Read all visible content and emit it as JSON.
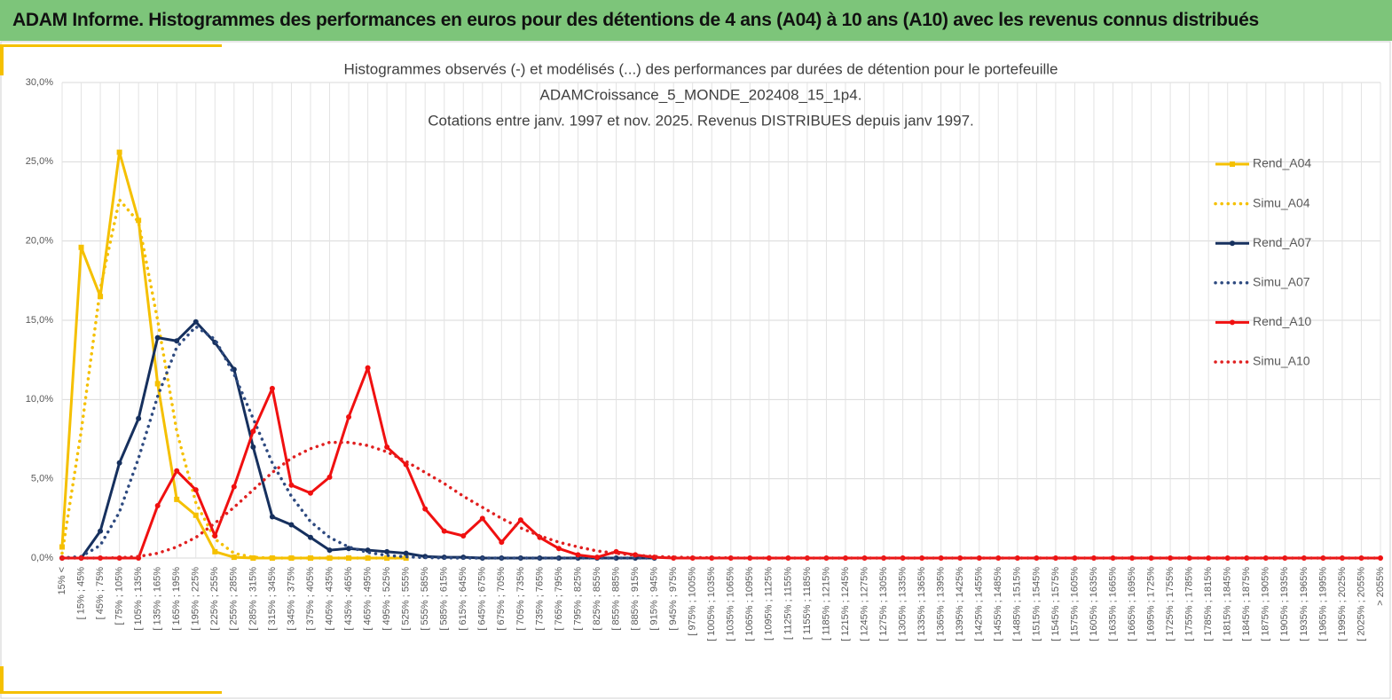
{
  "header": {
    "title": "ADAM Informe. Histogrammes des performances en euros pour des détentions de 4 ans (A04) à 10 ans (A10) avec les revenus connus distribués"
  },
  "chart_data": {
    "type": "line",
    "title": [
      "Histogrammes observés (-) et modélisés (...) des performances  par durées de détention pour le portefeuille",
      "ADAMCroissance_5_MONDE_202408_15_1p4.",
      "Cotations entre janv. 1997 et nov. 2025. Revenus DISTRIBUES depuis janv 1997."
    ],
    "categories": [
      "15% <",
      "[ 15% ; 45%",
      "[ 45% ; 75%",
      "[ 75% ; 105%",
      "[ 105% ; 135%",
      "[ 135% ; 165%",
      "[ 165% ; 195%",
      "[ 195% ; 225%",
      "[ 225% ; 255%",
      "[ 255% ; 285%",
      "[ 285% ; 315%",
      "[ 315% ; 345%",
      "[ 345% ; 375%",
      "[ 375% ; 405%",
      "[ 405% ; 435%",
      "[ 435% ; 465%",
      "[ 465% ; 495%",
      "[ 495% ; 525%",
      "[ 525% ; 555%",
      "[ 555% ; 585%",
      "[ 585% ; 615%",
      "[ 615% ; 645%",
      "[ 645% ; 675%",
      "[ 675% ; 705%",
      "[ 705% ; 735%",
      "[ 735% ; 765%",
      "[ 765% ; 795%",
      "[ 795% ; 825%",
      "[ 825% ; 855%",
      "[ 855% ; 885%",
      "[ 885% ; 915%",
      "[ 915% ; 945%",
      "[ 945% ; 975%",
      "[ 975% ; 1005%",
      "[ 1005% ; 1035%",
      "[ 1035% ; 1065%",
      "[ 1065% ; 1095%",
      "[ 1095% ; 1125%",
      "[ 1125% ; 1155%",
      "[ 1155% ; 1185%",
      "[ 1185% ; 1215%",
      "[ 1215% ; 1245%",
      "[ 1245% ; 1275%",
      "[ 1275% ; 1305%",
      "[ 1305% ; 1335%",
      "[ 1335% ; 1365%",
      "[ 1365% ; 1395%",
      "[ 1395% ; 1425%",
      "[ 1425% ; 1455%",
      "[ 1455% ; 1485%",
      "[ 1485% ; 1515%",
      "[ 1515% ; 1545%",
      "[ 1545% ; 1575%",
      "[ 1575% ; 1605%",
      "[ 1605% ; 1635%",
      "[ 1635% ; 1665%",
      "[ 1665% ; 1695%",
      "[ 1695% ; 1725%",
      "[ 1725% ; 1755%",
      "[ 1755% ; 1785%",
      "[ 1785% ; 1815%",
      "[ 1815% ; 1845%",
      "[ 1845% ; 1875%",
      "[ 1875% ; 1905%",
      "[ 1905% ; 1935%",
      "[ 1935% ; 1965%",
      "[ 1965% ; 1995%",
      "[ 1995% ; 2025%",
      "[ 2025% ; 2055%",
      "> 2055%"
    ],
    "series": [
      {
        "name": "Rend_A04",
        "color": "#f5c000",
        "style": "solid",
        "marker": "square",
        "values": [
          0.7,
          19.6,
          16.5,
          25.6,
          21.3,
          11,
          3.7,
          2.7,
          0.4,
          0.05,
          0,
          0,
          0,
          0,
          0,
          0,
          0,
          0,
          0,
          null,
          null,
          null,
          null,
          null,
          null,
          null,
          null,
          null,
          null,
          null,
          null,
          null,
          null,
          null,
          null,
          null,
          null,
          null,
          null,
          null,
          null,
          null,
          null,
          null,
          null,
          null,
          null,
          null,
          null,
          null,
          null,
          null,
          null,
          null,
          null,
          null,
          null,
          null,
          null,
          null,
          null,
          null,
          null,
          null,
          null,
          null,
          null,
          null,
          null,
          null
        ]
      },
      {
        "name": "Simu_A04",
        "color": "#f5c000",
        "style": "dotted",
        "marker": "none",
        "values": [
          0.3,
          8,
          17,
          22.6,
          21.2,
          15,
          8,
          3.5,
          1.2,
          0.3,
          0.05,
          0,
          0,
          0,
          0,
          0,
          0,
          0,
          0,
          null,
          null,
          null,
          null,
          null,
          null,
          null,
          null,
          null,
          null,
          null,
          null,
          null,
          null,
          null,
          null,
          null,
          null,
          null,
          null,
          null,
          null,
          null,
          null,
          null,
          null,
          null,
          null,
          null,
          null,
          null,
          null,
          null,
          null,
          null,
          null,
          null,
          null,
          null,
          null,
          null,
          null,
          null,
          null,
          null,
          null,
          null,
          null,
          null,
          null,
          null
        ]
      },
      {
        "name": "Rend_A07",
        "color": "#16305e",
        "style": "solid",
        "marker": "circle",
        "values": [
          0,
          0,
          1.7,
          6.0,
          8.8,
          13.9,
          13.7,
          14.9,
          13.6,
          11.9,
          7.0,
          2.6,
          2.1,
          1.3,
          0.5,
          0.6,
          0.5,
          0.4,
          0.3,
          0.1,
          0.05,
          0.05,
          0,
          0,
          0,
          0,
          0,
          0,
          0,
          0,
          0,
          0,
          null,
          null,
          null,
          null,
          null,
          null,
          null,
          null,
          null,
          null,
          null,
          null,
          null,
          null,
          null,
          null,
          null,
          null,
          null,
          null,
          null,
          null,
          null,
          null,
          null,
          null,
          null,
          null,
          null,
          null,
          null,
          null,
          null,
          null,
          null,
          null,
          null,
          null
        ]
      },
      {
        "name": "Simu_A07",
        "color": "#2e4a80",
        "style": "dotted",
        "marker": "none",
        "values": [
          0,
          0.1,
          0.8,
          2.9,
          6.3,
          10.2,
          13.3,
          14.6,
          13.8,
          11.6,
          8.8,
          6.0,
          3.9,
          2.3,
          1.3,
          0.7,
          0.35,
          0.17,
          0.08,
          0.03,
          0.01,
          0,
          0,
          0,
          0,
          0,
          0,
          0,
          0,
          0,
          0,
          0,
          null,
          null,
          null,
          null,
          null,
          null,
          null,
          null,
          null,
          null,
          null,
          null,
          null,
          null,
          null,
          null,
          null,
          null,
          null,
          null,
          null,
          null,
          null,
          null,
          null,
          null,
          null,
          null,
          null,
          null,
          null,
          null,
          null,
          null,
          null,
          null,
          null,
          null
        ]
      },
      {
        "name": "Rend_A10",
        "color": "#f01010",
        "style": "solid",
        "marker": "circle",
        "values": [
          0,
          0,
          0,
          0,
          0,
          3.3,
          5.5,
          4.3,
          1.4,
          4.5,
          8.0,
          10.7,
          4.6,
          4.1,
          5.1,
          8.9,
          12.0,
          7.0,
          5.9,
          3.1,
          1.7,
          1.4,
          2.5,
          1.0,
          2.4,
          1.3,
          0.6,
          0.2,
          0.05,
          0.4,
          0.2,
          0.05,
          0,
          0,
          0,
          0,
          0,
          0,
          0,
          0,
          0,
          0,
          0,
          0,
          0,
          0,
          0,
          0,
          0,
          0,
          0,
          0,
          0,
          0,
          0,
          0,
          0,
          0,
          0,
          0,
          0,
          0,
          0,
          0,
          0,
          0,
          0,
          0,
          0,
          0
        ]
      },
      {
        "name": "Simu_A10",
        "color": "#e02020",
        "style": "dotted",
        "marker": "none",
        "values": [
          0,
          0,
          0,
          0.02,
          0.1,
          0.3,
          0.7,
          1.3,
          2.2,
          3.2,
          4.3,
          5.4,
          6.3,
          6.9,
          7.3,
          7.3,
          7.1,
          6.7,
          6.1,
          5.4,
          4.7,
          3.9,
          3.2,
          2.5,
          1.9,
          1.4,
          1.0,
          0.7,
          0.45,
          0.3,
          0.18,
          0.1,
          0.06,
          0.03,
          0.02,
          0.01,
          0,
          0,
          0,
          0,
          0,
          0,
          0,
          0,
          0,
          0,
          0,
          0,
          0,
          0,
          0,
          0,
          0,
          0,
          0,
          0,
          0,
          0,
          0,
          0,
          0,
          0,
          0,
          0,
          0,
          0,
          0,
          0,
          0,
          0
        ]
      }
    ],
    "ylim": [
      0,
      30
    ],
    "yticks": [
      {
        "value": 0,
        "label": "0,0%"
      },
      {
        "value": 5,
        "label": "5,0%"
      },
      {
        "value": 10,
        "label": "10,0%"
      },
      {
        "value": 15,
        "label": "15,0%"
      },
      {
        "value": 20,
        "label": "20,0%"
      },
      {
        "value": 25,
        "label": "25,0%"
      },
      {
        "value": 30,
        "label": "30,0%"
      }
    ],
    "grid": true,
    "legend": "right"
  }
}
